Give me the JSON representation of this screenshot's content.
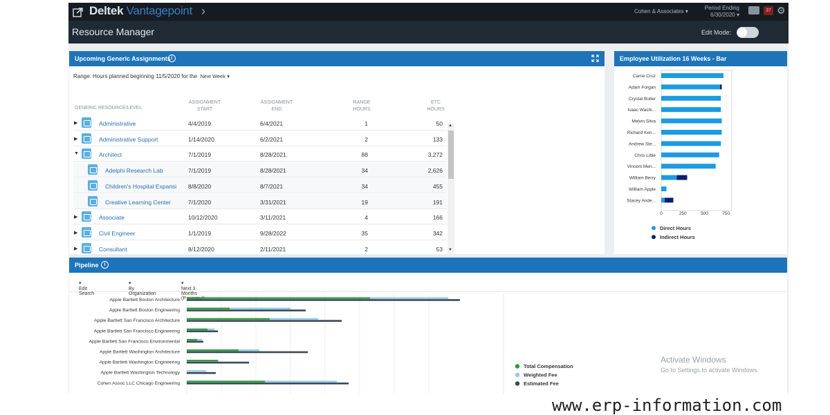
{
  "topbar": {
    "brand_a": "Deltek",
    "brand_b": "Vantagepoint",
    "company": "Cohen & Associates",
    "period_label": "Period Ending",
    "period_date": "6/30/2020",
    "alert_count": "37"
  },
  "page": {
    "title": "Resource Manager",
    "edit_mode_label": "Edit Mode:"
  },
  "assignments": {
    "title": "Upcoming Generic Assignments",
    "range_text": "Range: Hours planned beginning 11/5/2020 for the",
    "range_select": "Next Week",
    "headers": {
      "resource": "GENERIC RESOURCE/LEVEL",
      "start_1": "ASSIGNMENT",
      "start_2": "START",
      "end_1": "ASSIGNMENT",
      "end_2": "END",
      "range_1": "RANGE",
      "range_2": "HOURS",
      "etc_1": "ETC",
      "etc_2": "HOURS"
    },
    "rows": [
      {
        "name": "Administrative",
        "start": "4/4/2019",
        "end": "6/4/2021",
        "range": "1",
        "etc": "50"
      },
      {
        "name": "Administrative Support",
        "start": "1/14/2020",
        "end": "6/2/2021",
        "range": "2",
        "etc": "133"
      },
      {
        "name": "Architect",
        "start": "7/1/2019",
        "end": "8/28/2021",
        "range": "88",
        "etc": "3,272"
      },
      {
        "name": "Adelphi Research Lab",
        "start": "7/1/2019",
        "end": "8/28/2021",
        "range": "34",
        "etc": "2,626"
      },
      {
        "name": "Children's Hospital Expansi",
        "start": "8/8/2020",
        "end": "8/7/2021",
        "range": "34",
        "etc": "455"
      },
      {
        "name": "Creative Learning Center",
        "start": "7/1/2020",
        "end": "3/31/2021",
        "range": "19",
        "etc": "191"
      },
      {
        "name": "Associate",
        "start": "10/12/2020",
        "end": "3/11/2021",
        "range": "4",
        "etc": "166"
      },
      {
        "name": "Civil Engineer",
        "start": "1/1/2019",
        "end": "9/28/2022",
        "range": "35",
        "etc": "342"
      },
      {
        "name": "Consultant",
        "start": "8/12/2020",
        "end": "2/11/2021",
        "range": "2",
        "etc": "53"
      }
    ]
  },
  "utilization": {
    "title": "Employee Utilization 16 Weeks - Bar",
    "chart_data": {
      "type": "bar",
      "orientation": "horizontal",
      "stacked": true,
      "categories": [
        "Carrie Cruz",
        "Adam Forgan",
        "Crystal Butler",
        "Isaac Washi...",
        "Melvin Silva",
        "Richard Ken...",
        "Andrew Ste...",
        "Chris Little",
        "Vincent Men...",
        "William Berry",
        "William Apple",
        "Stacey Ande..."
      ],
      "series": [
        {
          "name": "Direct Hours",
          "color": "#1d9be0",
          "values": [
            720,
            680,
            690,
            690,
            700,
            700,
            690,
            670,
            630,
            180,
            60,
            40
          ]
        },
        {
          "name": "Indirect Hours",
          "color": "#0b1f6b",
          "values": [
            0,
            20,
            0,
            0,
            0,
            0,
            0,
            0,
            0,
            120,
            0,
            100
          ]
        }
      ],
      "xticks": [
        "0",
        "250",
        "500",
        "750"
      ],
      "xlim": [
        0,
        800
      ],
      "legend": "bottom"
    }
  },
  "pipeline": {
    "title": "Pipeline",
    "filter_search": "Edit Search",
    "filter_org": "By Organization",
    "filter_period": "Next 3 Months (Projected)",
    "chart_data": {
      "type": "bar",
      "orientation": "horizontal",
      "categories": [
        "Apple Bartlett Boston Architecture",
        "Apple Bartlett Boston Engineering",
        "Apple Bartlett San Francisco Architecture",
        "Apple Bartlett San Francisco Engineering",
        "Apple Bartlett San Francisco Environmental",
        "Apple Bartlett Washington Architecture",
        "Apple Bartlett Washington Engineering",
        "Apple Bartlett Washington Technology",
        "Cohen Assoc LLC Chicago Engineering"
      ],
      "series": [
        {
          "name": "Total Compensation",
          "color": "#2e9b3a",
          "values": [
            265,
            62,
            120,
            30,
            15,
            75,
            45,
            0,
            113
          ]
        },
        {
          "name": "Weighted Fee",
          "color": "#8fcbe8",
          "values": [
            378,
            150,
            190,
            40,
            22,
            105,
            46,
            28,
            217
          ]
        },
        {
          "name": "Estimated Fee",
          "color": "#3c4756",
          "values": [
            395,
            172,
            224,
            45,
            24,
            175,
            90,
            42,
            234
          ]
        }
      ],
      "legend": "right"
    }
  },
  "watermark": {
    "line1": "Activate Windows",
    "line2": "Go to Settings to activate Windows."
  },
  "site": "www.erp-information.com"
}
